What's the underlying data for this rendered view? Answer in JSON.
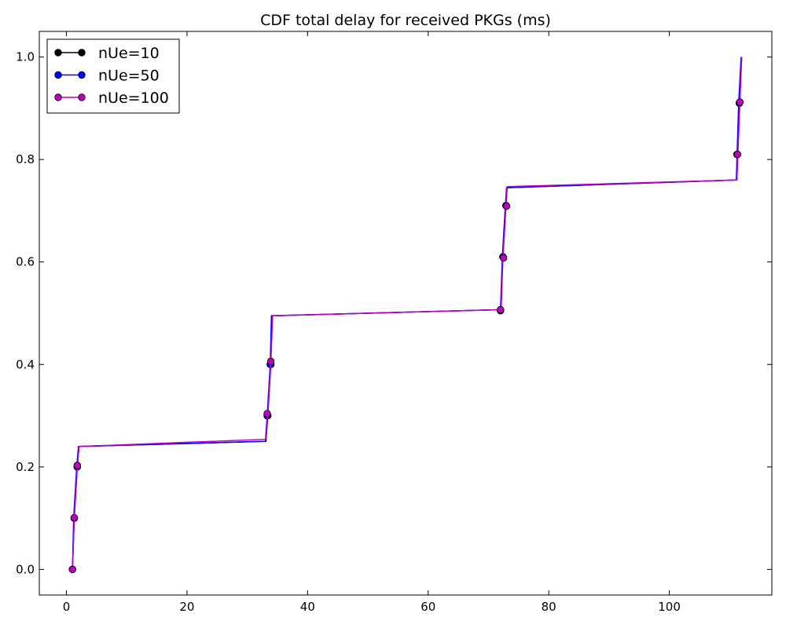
{
  "chart_data": {
    "type": "line",
    "title": "CDF total delay for received PKGs (ms)",
    "xlabel": "",
    "ylabel": "",
    "xlim": [
      -4.5,
      117
    ],
    "ylim": [
      -0.05,
      1.05
    ],
    "x_ticks": [
      0,
      20,
      40,
      60,
      80,
      100
    ],
    "x_tick_labels": [
      "0",
      "20",
      "40",
      "60",
      "80",
      "100"
    ],
    "y_ticks": [
      0.0,
      0.2,
      0.4,
      0.6,
      0.8,
      1.0
    ],
    "y_tick_labels": [
      "0.0",
      "0.2",
      "0.4",
      "0.6",
      "0.8",
      "1.0"
    ],
    "grid": false,
    "legend_position": "top-left",
    "series": [
      {
        "name": "nUe=10",
        "color": "#000000",
        "x": [
          1.0,
          1.3,
          1.8,
          2.1,
          33.1,
          33.4,
          33.9,
          34.1,
          72.0,
          72.4,
          72.9,
          73.1,
          111.2,
          111.6,
          112.0
        ],
        "y": [
          0.0,
          0.1,
          0.2,
          0.24,
          0.25,
          0.3,
          0.4,
          0.495,
          0.507,
          0.61,
          0.71,
          0.745,
          0.76,
          0.91,
          1.0
        ],
        "markers_x": [
          1.0,
          1.3,
          1.8,
          33.4,
          33.9,
          72.0,
          72.4,
          72.9,
          111.3,
          111.6
        ],
        "markers_y": [
          0.0,
          0.1,
          0.2,
          0.3,
          0.4,
          0.505,
          0.61,
          0.71,
          0.81,
          0.91
        ]
      },
      {
        "name": "nUe=50",
        "color": "#0000ff",
        "x": [
          1.0,
          1.2,
          1.7,
          2.0,
          33.0,
          33.3,
          33.8,
          34.0,
          72.0,
          72.3,
          72.8,
          73.0,
          111.1,
          111.5,
          111.9
        ],
        "y": [
          0.0,
          0.1,
          0.2,
          0.24,
          0.25,
          0.3,
          0.4,
          0.495,
          0.507,
          0.61,
          0.71,
          0.745,
          0.76,
          0.91,
          1.0
        ],
        "markers_x": [
          1.0,
          1.3,
          1.8,
          33.3,
          33.8,
          72.0,
          72.4,
          72.9,
          111.2,
          111.6
        ],
        "markers_y": [
          0.0,
          0.1,
          0.2,
          0.3,
          0.4,
          0.505,
          0.61,
          0.71,
          0.81,
          0.91
        ]
      },
      {
        "name": "nUe=100",
        "color": "#bf00bf",
        "x": [
          1.0,
          1.3,
          1.8,
          2.1,
          33.1,
          33.4,
          33.9,
          34.2,
          72.1,
          72.4,
          72.9,
          73.1,
          111.2,
          111.7,
          112.0
        ],
        "y": [
          0.0,
          0.1,
          0.2,
          0.24,
          0.254,
          0.304,
          0.406,
          0.495,
          0.507,
          0.608,
          0.709,
          0.747,
          0.76,
          0.912,
          1.0
        ],
        "markers_x": [
          1.0,
          1.3,
          1.8,
          33.3,
          33.9,
          72.0,
          72.5,
          73.0,
          111.3,
          111.7
        ],
        "markers_y": [
          0.0,
          0.101,
          0.203,
          0.304,
          0.406,
          0.507,
          0.608,
          0.709,
          0.81,
          0.912
        ]
      }
    ]
  }
}
